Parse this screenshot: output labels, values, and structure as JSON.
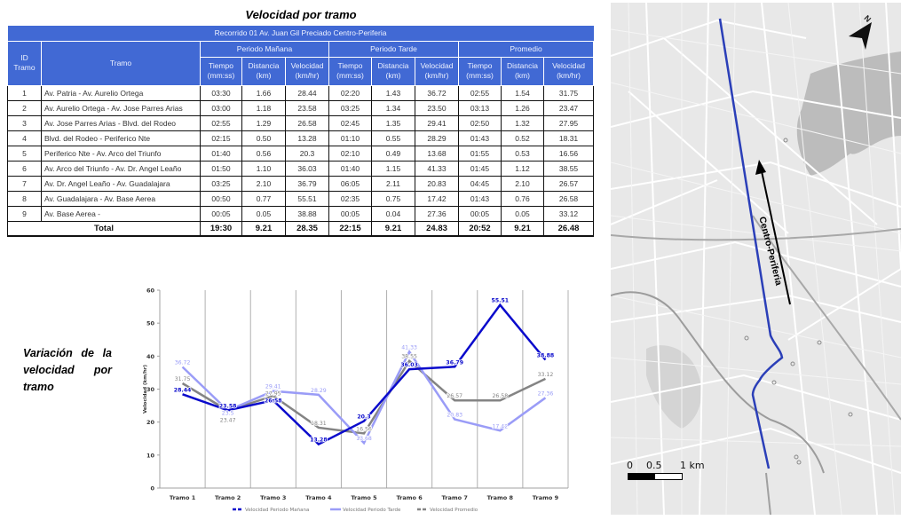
{
  "table": {
    "title": "Velocidad por tramo",
    "route_title": "Recorrido 01 Av. Juan Gil Preciado Centro-Periferia",
    "col_id": "ID Tramo",
    "col_tramo": "Tramo",
    "groups": [
      "Periodo Mañana",
      "Periodo Tarde",
      "Promedio"
    ],
    "sub_headers": {
      "tiempo": "Tiempo (mm:ss)",
      "distancia": "Distancia (km)",
      "velocidad": "Velocidad (km/hr)"
    },
    "rows": [
      {
        "id": "1",
        "tramo": "Av. Patria - Av. Aurelio Ortega",
        "m_t": "03:30",
        "m_d": "1.66",
        "m_v": "28.44",
        "t_t": "02:20",
        "t_d": "1.43",
        "t_v": "36.72",
        "p_t": "02:55",
        "p_d": "1.54",
        "p_v": "31.75"
      },
      {
        "id": "2",
        "tramo": "Av. Aurelio Ortega - Av. Jose Parres Arias",
        "m_t": "03:00",
        "m_d": "1.18",
        "m_v": "23.58",
        "t_t": "03:25",
        "t_d": "1.34",
        "t_v": "23.50",
        "p_t": "03:13",
        "p_d": "1.26",
        "p_v": "23.47"
      },
      {
        "id": "3",
        "tramo": "Av. Jose Parres Arias - Blvd. del Rodeo",
        "m_t": "02:55",
        "m_d": "1.29",
        "m_v": "26.58",
        "t_t": "02:45",
        "t_d": "1.35",
        "t_v": "29.41",
        "p_t": "02:50",
        "p_d": "1.32",
        "p_v": "27.95"
      },
      {
        "id": "4",
        "tramo": "Blvd. del Rodeo - Periferico Nte",
        "m_t": "02:15",
        "m_d": "0.50",
        "m_v": "13.28",
        "t_t": "01:10",
        "t_d": "0.55",
        "t_v": "28.29",
        "p_t": "01:43",
        "p_d": "0.52",
        "p_v": "18.31"
      },
      {
        "id": "5",
        "tramo": "Periferico Nte - Av. Arco del Triunfo",
        "m_t": "01:40",
        "m_d": "0.56",
        "m_v": "20.3",
        "t_t": "02:10",
        "t_d": "0.49",
        "t_v": "13.68",
        "p_t": "01:55",
        "p_d": "0.53",
        "p_v": "16.56"
      },
      {
        "id": "6",
        "tramo": "Av. Arco del Triunfo - Av. Dr. Angel Leaño",
        "m_t": "01:50",
        "m_d": "1.10",
        "m_v": "36.03",
        "t_t": "01:40",
        "t_d": "1.15",
        "t_v": "41.33",
        "p_t": "01:45",
        "p_d": "1.12",
        "p_v": "38.55"
      },
      {
        "id": "7",
        "tramo": "Av. Dr. Angel Leaño - Av. Guadalajara",
        "m_t": "03:25",
        "m_d": "2.10",
        "m_v": "36.79",
        "t_t": "06:05",
        "t_d": "2.11",
        "t_v": "20.83",
        "p_t": "04:45",
        "p_d": "2.10",
        "p_v": "26.57"
      },
      {
        "id": "8",
        "tramo": "Av. Guadalajara - Av. Base Aerea",
        "m_t": "00:50",
        "m_d": "0.77",
        "m_v": "55.51",
        "t_t": "02:35",
        "t_d": "0.75",
        "t_v": "17.42",
        "p_t": "01:43",
        "p_d": "0.76",
        "p_v": "26.58"
      },
      {
        "id": "9",
        "tramo": "Av. Base Aerea -",
        "m_t": "00:05",
        "m_d": "0.05",
        "m_v": "38.88",
        "t_t": "00:05",
        "t_d": "0.04",
        "t_v": "27.36",
        "p_t": "00:05",
        "p_d": "0.05",
        "p_v": "33.12"
      }
    ],
    "total": {
      "label": "Total",
      "m_t": "19:30",
      "m_d": "9.21",
      "m_v": "28.35",
      "t_t": "22:15",
      "t_d": "9.21",
      "t_v": "24.83",
      "p_t": "20:52",
      "p_d": "9.21",
      "p_v": "26.48"
    }
  },
  "chart_side_title": [
    "Variación de la",
    "velocidad por",
    "tramo"
  ],
  "chart_data": {
    "type": "line",
    "title": "Variación de la velocidad por tramo",
    "xlabel": "",
    "ylabel": "Velocidad (km/hr)",
    "ylim": [
      0,
      60
    ],
    "yticks": [
      0,
      10,
      20,
      30,
      40,
      50,
      60
    ],
    "grid": "vertical",
    "legend_position": "bottom",
    "categories": [
      "Tramo 1",
      "Tramo 2",
      "Tramo 3",
      "Tramo 4",
      "Tramo 5",
      "Tramo 6",
      "Tramo 7",
      "Tramo 8",
      "Tramo 9"
    ],
    "series": [
      {
        "name": "Velocidad Periodo Mañana",
        "color": "#0a0acc",
        "values": [
          28.44,
          23.58,
          26.58,
          13.28,
          20.3,
          36.03,
          36.79,
          55.51,
          38.88
        ]
      },
      {
        "name": "Velocidad Periodo Tarde",
        "color": "#9a9cf7",
        "values": [
          36.72,
          23.5,
          29.41,
          28.29,
          13.68,
          41.33,
          20.83,
          17.42,
          27.36
        ]
      },
      {
        "name": "Velocidad Promedio",
        "color": "#848484",
        "values": [
          31.75,
          23.47,
          27.95,
          18.31,
          16.56,
          38.55,
          26.57,
          26.58,
          33.12
        ]
      }
    ]
  },
  "map": {
    "route_label": "Centro-Periferia",
    "north_label": "N",
    "scale_labels": [
      "0",
      "0.5",
      "1 km"
    ],
    "route_color": "#2b3fb8"
  }
}
